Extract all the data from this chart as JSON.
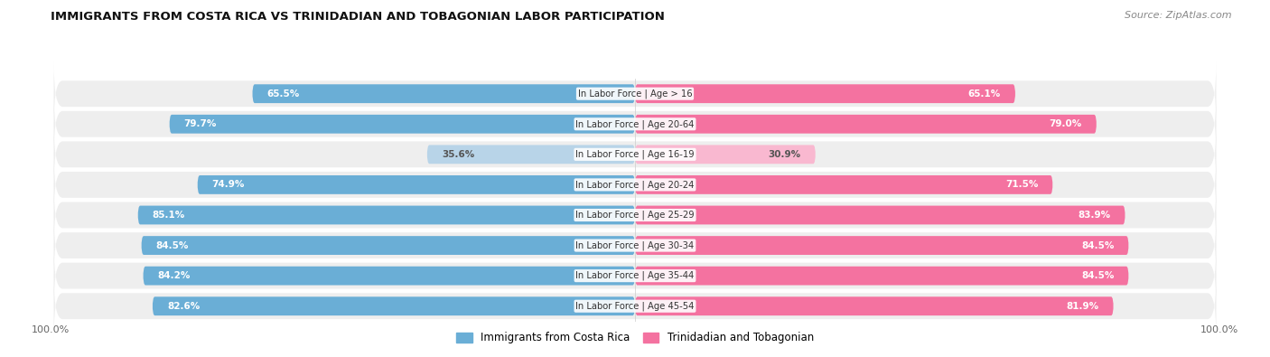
{
  "title": "IMMIGRANTS FROM COSTA RICA VS TRINIDADIAN AND TOBAGONIAN LABOR PARTICIPATION",
  "source": "Source: ZipAtlas.com",
  "categories": [
    "In Labor Force | Age > 16",
    "In Labor Force | Age 20-64",
    "In Labor Force | Age 16-19",
    "In Labor Force | Age 20-24",
    "In Labor Force | Age 25-29",
    "In Labor Force | Age 30-34",
    "In Labor Force | Age 35-44",
    "In Labor Force | Age 45-54"
  ],
  "costa_rica_values": [
    65.5,
    79.7,
    35.6,
    74.9,
    85.1,
    84.5,
    84.2,
    82.6
  ],
  "trinidad_values": [
    65.1,
    79.0,
    30.9,
    71.5,
    83.9,
    84.5,
    84.5,
    81.9
  ],
  "costa_rica_color": "#6aaed6",
  "costa_rica_color_light": "#b8d4e8",
  "trinidad_color": "#f472a0",
  "trinidad_color_light": "#f9b8d0",
  "row_bg_color": "#eeeeee",
  "label_color_dark": "#555555",
  "label_color_white": "#ffffff",
  "legend_costa_rica": "Immigrants from Costa Rica",
  "legend_trinidad": "Trinidadian and Tobagonian",
  "bg_color": "#ffffff"
}
